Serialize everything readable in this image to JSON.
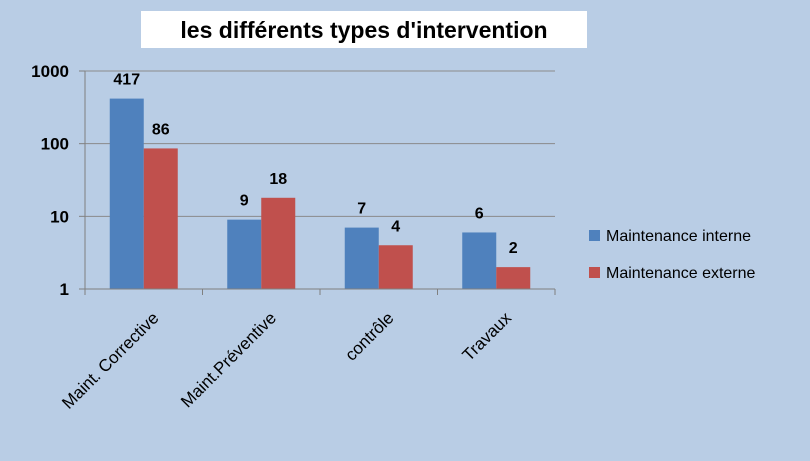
{
  "chart_data": {
    "type": "bar",
    "title": "les différents types d'intervention",
    "categories": [
      "Maint. Corrective",
      "Maint.Préventive",
      "contrôle",
      "Travaux"
    ],
    "series": [
      {
        "name": "Maintenance interne",
        "values": [
          417,
          9,
          7,
          6
        ],
        "color": "#4f81bd"
      },
      {
        "name": "Maintenance externe",
        "values": [
          86,
          18,
          4,
          2
        ],
        "color": "#c0504d"
      }
    ],
    "y_scale": "log",
    "ylim": [
      1,
      1000
    ],
    "y_ticks": [
      {
        "value": 1,
        "label": "1"
      },
      {
        "value": 10,
        "label": "10"
      },
      {
        "value": 100,
        "label": "100"
      },
      {
        "value": 1000,
        "label": "1000"
      }
    ],
    "grid": true,
    "legend_position": "right",
    "background_color": "#b9cde5"
  }
}
